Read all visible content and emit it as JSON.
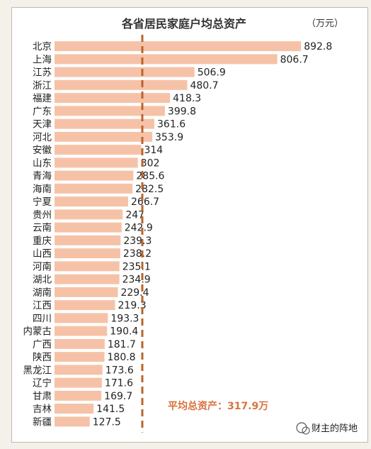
{
  "chart_data": {
    "type": "bar",
    "orientation": "horizontal",
    "title": "各省居民家庭户均总资产",
    "unit": "（万元）",
    "categories": [
      "北京",
      "上海",
      "江苏",
      "浙江",
      "福建",
      "广东",
      "天津",
      "河北",
      "安徽",
      "山东",
      "青海",
      "海南",
      "宁夏",
      "贵州",
      "云南",
      "重庆",
      "山西",
      "河南",
      "湖北",
      "湖南",
      "江西",
      "四川",
      "内蒙古",
      "广西",
      "陕西",
      "黑龙江",
      "辽宁",
      "甘肃",
      "吉林",
      "新疆"
    ],
    "values": [
      892.8,
      806.7,
      506.9,
      480.7,
      418.3,
      399.8,
      361.6,
      353.9,
      314,
      302,
      285.6,
      282.5,
      266.7,
      247,
      242.9,
      239.3,
      238.2,
      235.1,
      234.9,
      229.4,
      219.3,
      193.3,
      190.4,
      181.7,
      180.8,
      173.6,
      171.6,
      169.7,
      141.5,
      127.5
    ],
    "value_labels": [
      "892.8",
      "806.7",
      "506.9",
      "480.7",
      "418.3",
      "399.8",
      "361.6",
      "353.9",
      "314",
      "302",
      "285.6",
      "282.5",
      "266.7",
      "247",
      "242.9",
      "239.3",
      "238.2",
      "235.1",
      "234.9",
      "229.4",
      "219.3",
      "193.3",
      "190.4",
      "181.7",
      "180.8",
      "173.6",
      "171.6",
      "169.7",
      "141.5",
      "127.5"
    ],
    "average": 317.9,
    "average_label": "平均总资产：317.9万",
    "xlim": [
      0,
      1000
    ],
    "bar_color": "#f6c2a7",
    "average_line_color": "#b8652e",
    "grid": false
  },
  "watermark": {
    "text": "财主的阵地"
  }
}
